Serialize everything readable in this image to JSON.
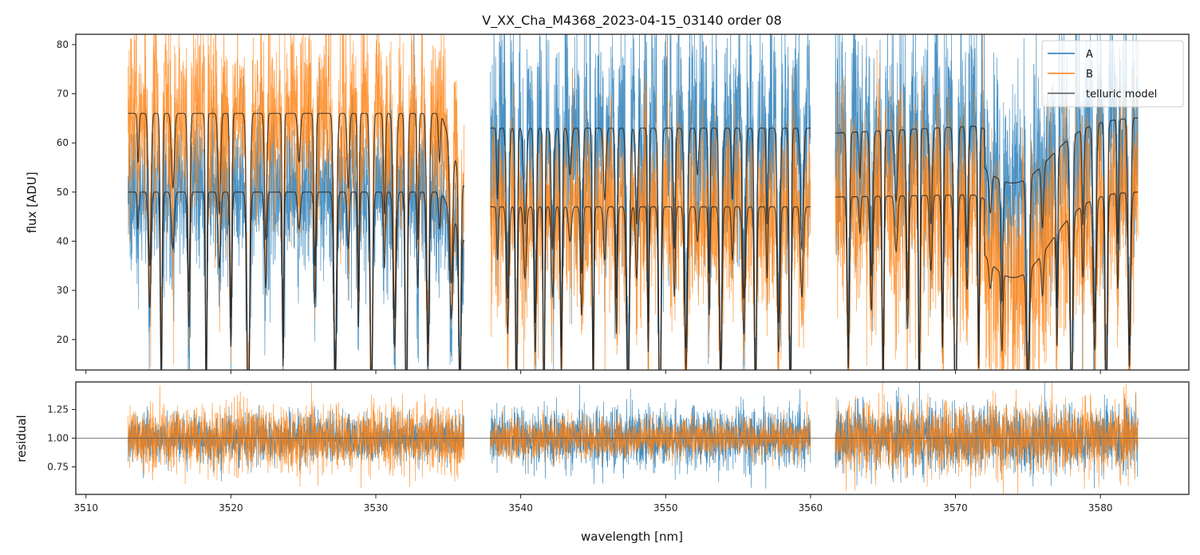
{
  "chart_data": [
    {
      "panel": "flux",
      "type": "line",
      "title": "V_XX_Cha_M4368_2023-04-15_03140  order 08",
      "xlabel": "",
      "ylabel": "flux [ADU]",
      "xlim": [
        3509.3,
        3586.1
      ],
      "ylim": [
        13.8,
        82.1
      ],
      "xticks": [
        3510,
        3520,
        3530,
        3540,
        3550,
        3560,
        3570,
        3580
      ],
      "xtick_labels_shown": false,
      "yticks": [
        20,
        30,
        40,
        50,
        60,
        70,
        80
      ],
      "ytick_labels": [
        "20",
        "30",
        "40",
        "50",
        "60",
        "70",
        "80"
      ],
      "grid": false,
      "legend": {
        "placement": "top-right",
        "entries": [
          {
            "label": "A",
            "color": "#1f77b4"
          },
          {
            "label": "B",
            "color": "#ff7f0e"
          },
          {
            "label": "telluric model",
            "color": "#333333"
          }
        ]
      },
      "segments": [
        {
          "x_range": [
            3512.9,
            3536.1
          ],
          "continuum_A": 50,
          "continuum_B": 66,
          "noise_A": 8,
          "noise_B": 10
        },
        {
          "x_range": [
            3537.9,
            3560.0
          ],
          "continuum_A": 63,
          "continuum_B": 47,
          "noise_A": 12,
          "noise_B": 9
        },
        {
          "x_range": [
            3561.7,
            3582.6
          ],
          "continuum_A": 62,
          "continuum_B": 49,
          "noise_A": 12,
          "noise_B": 11
        }
      ],
      "broad_dip": {
        "center": 3574.0,
        "depth_A": 12,
        "depth_B": 17,
        "width": 3.5
      },
      "series": [
        {
          "name": "A",
          "color": "#1f77b4",
          "alpha": 0.8,
          "description": "observed spectrum of component A (noisy)"
        },
        {
          "name": "B",
          "color": "#ff7f0e",
          "alpha": 0.8,
          "description": "observed spectrum of component B (noisy)"
        },
        {
          "name": "telluric model",
          "color": "#333333",
          "alpha": 0.85,
          "description": "smooth model overlaid on A and B with narrow absorption lines"
        }
      ],
      "absorption_lines_nm": [
        3513.6,
        3514.4,
        3515.2,
        3516.0,
        3517.1,
        3518.3,
        3519.2,
        3520.0,
        3521.2,
        3522.4,
        3523.6,
        3524.7,
        3525.8,
        3527.2,
        3528.1,
        3528.8,
        3529.7,
        3530.6,
        3531.3,
        3532.1,
        3532.9,
        3533.6,
        3534.4,
        3535.2,
        3535.8,
        3538.4,
        3539.1,
        3539.7,
        3540.3,
        3541.0,
        3541.6,
        3542.2,
        3542.8,
        3543.4,
        3544.2,
        3545.0,
        3545.8,
        3546.6,
        3547.4,
        3548.0,
        3548.8,
        3549.6,
        3550.6,
        3551.4,
        3552.2,
        3553.0,
        3553.8,
        3554.6,
        3555.4,
        3556.2,
        3557.0,
        3557.8,
        3558.6,
        3559.4,
        3562.6,
        3563.4,
        3564.2,
        3565.0,
        3565.9,
        3566.7,
        3567.5,
        3568.3,
        3569.1,
        3570.0,
        3570.8,
        3571.6,
        3572.4,
        3573.2,
        3575.0,
        3576.0,
        3577.0,
        3578.0,
        3578.8,
        3579.6,
        3580.4,
        3581.2,
        3582.0
      ]
    },
    {
      "panel": "residual",
      "type": "line",
      "xlabel": "wavelength [nm]",
      "ylabel": "residual",
      "xlim": [
        3509.3,
        3586.1
      ],
      "ylim": [
        0.51,
        1.49
      ],
      "xticks": [
        3510,
        3520,
        3530,
        3540,
        3550,
        3560,
        3570,
        3580
      ],
      "xtick_labels": [
        "3510",
        "3520",
        "3530",
        "3540",
        "3550",
        "3560",
        "3570",
        "3580"
      ],
      "yticks": [
        0.75,
        1.0,
        1.25
      ],
      "ytick_labels": [
        "0.75",
        "1.00",
        "1.25"
      ],
      "reference_line": 1.0,
      "grid": false,
      "segments": [
        {
          "x_range": [
            3512.9,
            3536.1
          ],
          "noise_A": 0.1,
          "noise_B": 0.14
        },
        {
          "x_range": [
            3537.9,
            3560.0
          ],
          "noise_A": 0.13,
          "noise_B": 0.09
        },
        {
          "x_range": [
            3561.7,
            3582.6
          ],
          "noise_A": 0.14,
          "noise_B": 0.15
        }
      ],
      "series": [
        {
          "name": "A",
          "color": "#1f77b4"
        },
        {
          "name": "B",
          "color": "#ff7f0e"
        }
      ]
    }
  ]
}
